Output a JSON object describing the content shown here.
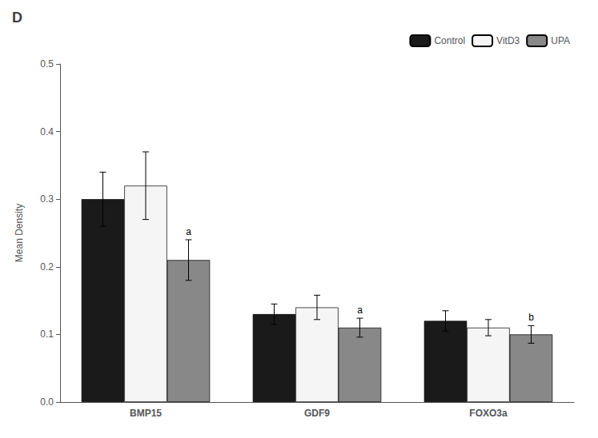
{
  "chart_data": {
    "type": "bar",
    "title": "D",
    "categories": [
      "BMP15",
      "GDF9",
      "FOXO3a"
    ],
    "series": [
      {
        "name": "Control",
        "color": "#1a1a1a",
        "values": [
          0.3,
          0.13,
          0.12
        ],
        "errors": [
          0.04,
          0.015,
          0.015
        ]
      },
      {
        "name": "VitD3",
        "color": "#f5f5f5",
        "values": [
          0.32,
          0.14,
          0.11
        ],
        "errors": [
          0.05,
          0.018,
          0.012
        ]
      },
      {
        "name": "UPA",
        "color": "#888888",
        "values": [
          0.21,
          0.11,
          0.1
        ],
        "errors": [
          0.03,
          0.014,
          0.013
        ]
      }
    ],
    "annotations": [
      {
        "category": "BMP15",
        "series": "UPA",
        "text": "a"
      },
      {
        "category": "GDF9",
        "series": "UPA",
        "text": "a"
      },
      {
        "category": "FOXO3a",
        "series": "UPA",
        "text": "b"
      }
    ],
    "ylabel": "Mean Density",
    "ylim": [
      0,
      0.5
    ],
    "yticks": [
      {
        "value": 0,
        "label": "0.0"
      },
      0.1,
      0.2,
      0.3,
      0.4,
      0.5
    ],
    "grid": false,
    "legend": "upper right"
  }
}
